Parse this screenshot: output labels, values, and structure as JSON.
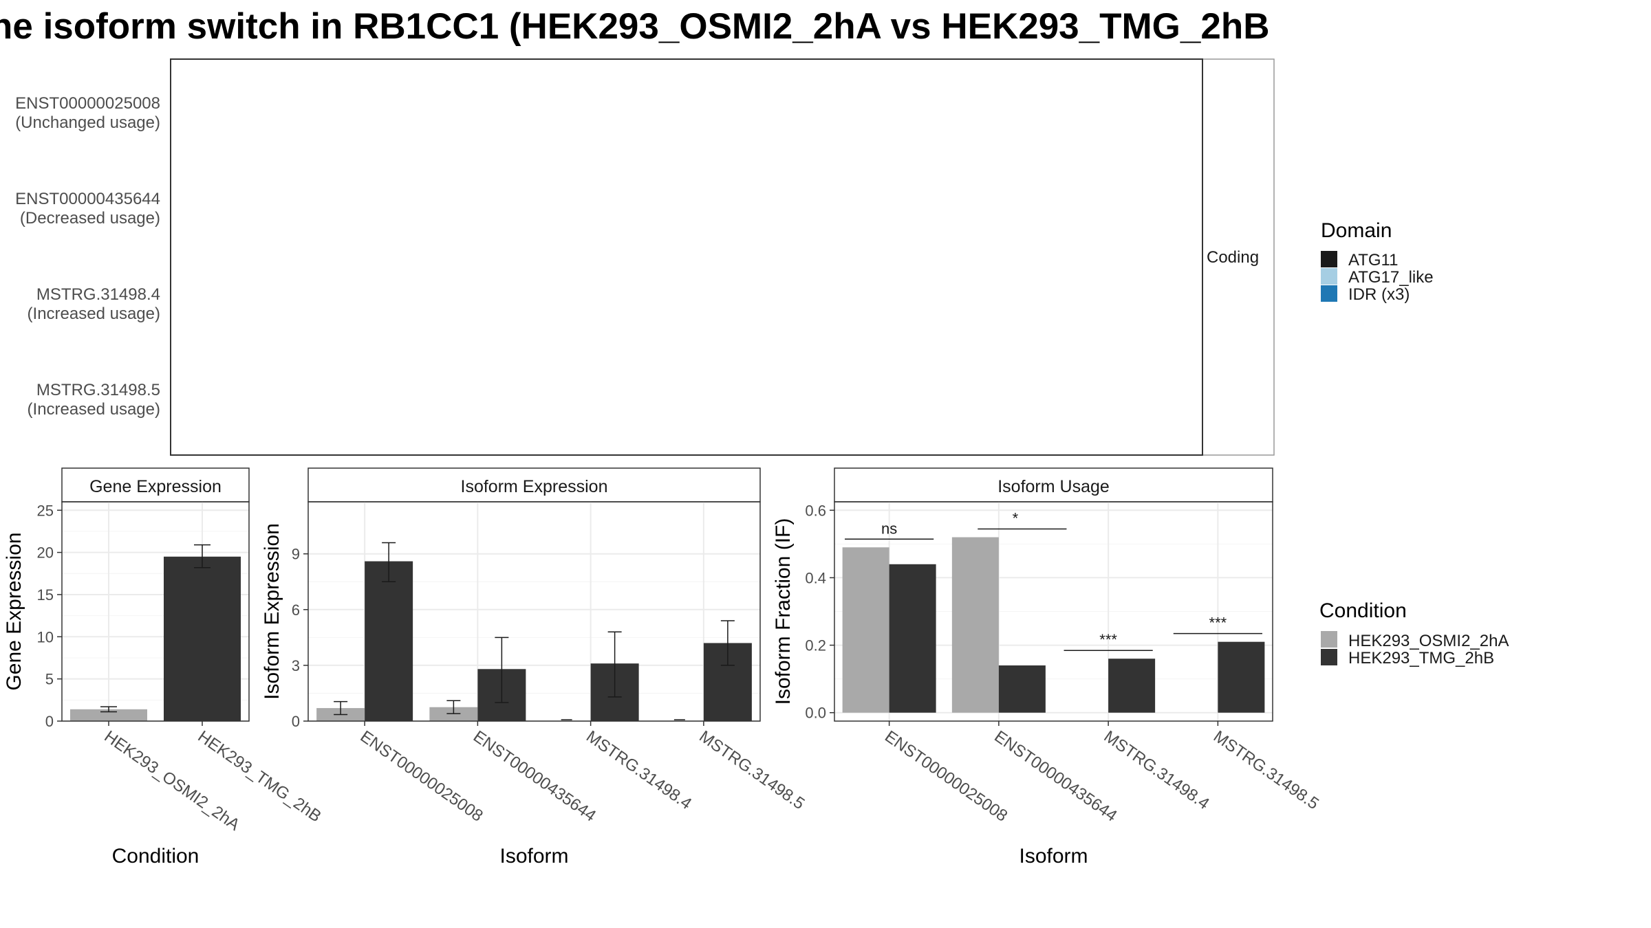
{
  "title": "ne isoform switch in RB1CC1 (HEK293_OSMI2_2hA vs HEK293_TMG_2hB",
  "colors": {
    "ATG11": "#1a1a1a",
    "ATG17_like": "#a6cee3",
    "IDR": "#1f78b4",
    "exon": "#808080",
    "cond_a": "#a9a9a9",
    "cond_b": "#333333"
  },
  "structure": {
    "facet_label": "Coding",
    "isoforms": [
      {
        "id": "ENST00000025008",
        "usage": "(Unchanged usage)"
      },
      {
        "id": "ENST00000435644",
        "usage": "(Decreased usage)"
      },
      {
        "id": "MSTRG.31498.4",
        "usage": "(Increased usage)"
      },
      {
        "id": "MSTRG.31498.5",
        "usage": "(Increased usage)"
      }
    ]
  },
  "legend_domain": {
    "title": "Domain",
    "items": [
      "ATG11",
      "ATG17_like",
      "IDR (x3)"
    ]
  },
  "legend_condition": {
    "title": "Condition",
    "items": [
      "HEK293_OSMI2_2hA",
      "HEK293_TMG_2hB"
    ]
  },
  "chart_data": [
    {
      "type": "bar",
      "title": "Gene Expression",
      "xlabel": "Condition",
      "ylabel": "Gene Expression",
      "categories": [
        "HEK293_OSMI2_2hA",
        "HEK293_TMG_2hB"
      ],
      "values": [
        1.4,
        19.5
      ],
      "errors": [
        [
          1.1,
          1.7
        ],
        [
          18.2,
          20.9
        ]
      ],
      "ylim": [
        0,
        26
      ],
      "yticks": [
        0,
        5,
        10,
        15,
        20,
        25
      ]
    },
    {
      "type": "bar",
      "title": "Isoform Expression",
      "xlabel": "Isoform",
      "ylabel": "Isoform Expression",
      "categories": [
        "ENST00000025008",
        "ENST00000435644",
        "MSTRG.31498.4",
        "MSTRG.31498.5"
      ],
      "series": [
        {
          "name": "HEK293_OSMI2_2hA",
          "values": [
            0.7,
            0.75,
            0.0,
            0.0
          ],
          "errors": [
            [
              0.35,
              1.05
            ],
            [
              0.4,
              1.1
            ],
            [
              0,
              0
            ],
            [
              0,
              0
            ]
          ]
        },
        {
          "name": "HEK293_TMG_2hB",
          "values": [
            8.6,
            2.8,
            3.1,
            4.2
          ],
          "errors": [
            [
              7.5,
              9.6
            ],
            [
              1.0,
              4.5
            ],
            [
              1.3,
              4.8
            ],
            [
              3.0,
              5.4
            ]
          ]
        }
      ],
      "ylim": [
        0,
        11.8
      ],
      "yticks": [
        0,
        3,
        6,
        9
      ]
    },
    {
      "type": "bar",
      "title": "Isoform Usage",
      "xlabel": "Isoform",
      "ylabel": "Isoform Fraction (IF)",
      "categories": [
        "ENST00000025008",
        "ENST00000435644",
        "MSTRG.31498.4",
        "MSTRG.31498.5"
      ],
      "series": [
        {
          "name": "HEK293_OSMI2_2hA",
          "values": [
            0.49,
            0.52,
            0.0,
            0.0
          ]
        },
        {
          "name": "HEK293_TMG_2hB",
          "values": [
            0.44,
            0.14,
            0.16,
            0.21
          ]
        }
      ],
      "significance": [
        "ns",
        "*",
        "***",
        "***"
      ],
      "ylim": [
        -0.025,
        0.625
      ],
      "yticks": [
        0.0,
        0.2,
        0.4,
        0.6
      ],
      "ytick_labels": [
        "0.0",
        "0.2",
        "0.4",
        "0.6"
      ]
    }
  ]
}
